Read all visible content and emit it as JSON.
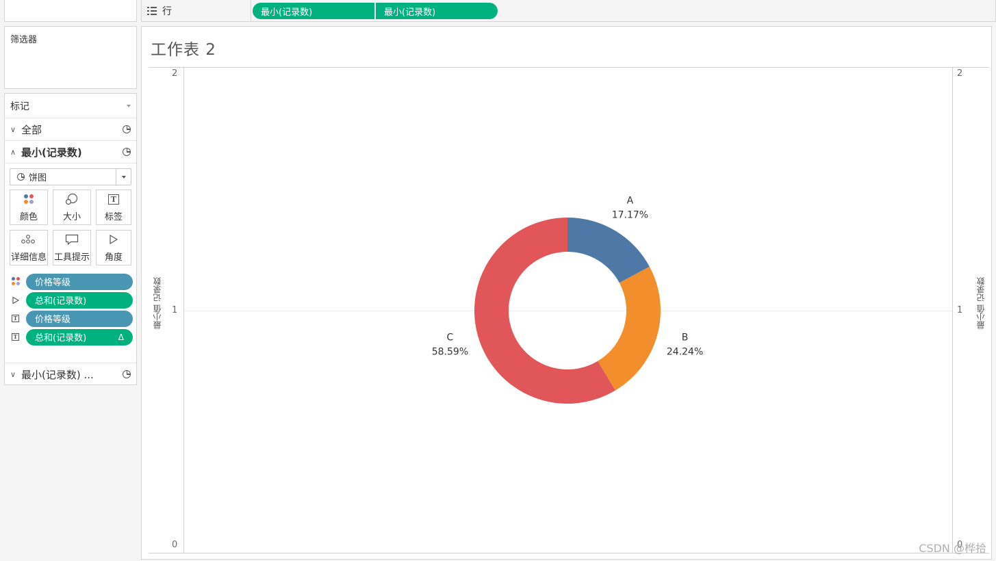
{
  "shelf": {
    "rows_label": "行",
    "pills": [
      "最小(记录数)",
      "最小(记录数)"
    ]
  },
  "filters": {
    "title": "筛选器"
  },
  "marks": {
    "title": "标记",
    "sections": {
      "all": "全部",
      "current": "最小(记录数)",
      "last": "最小(记录数) ..."
    },
    "mark_type": "饼图",
    "buttons": [
      "颜色",
      "大小",
      "标签",
      "详细信息",
      "工具提示",
      "角度"
    ],
    "fields": [
      {
        "icon": "color-dots-icon",
        "label": "价格等级",
        "color": "blue"
      },
      {
        "icon": "angle-icon",
        "label": "总和(记录数)",
        "color": "green"
      },
      {
        "icon": "text-label-icon",
        "label": "价格等级",
        "color": "blue"
      },
      {
        "icon": "text-label-icon",
        "label": "总和(记录数)",
        "color": "green",
        "delta": "Δ"
      }
    ]
  },
  "sheet": {
    "title": "工作表 2",
    "y_axis_title_left": "最小值 记录数",
    "y_axis_title_right": "最小值 记录数",
    "ticks": [
      "2",
      "1",
      "0"
    ]
  },
  "chart_data": {
    "type": "pie",
    "variant": "donut",
    "categories": [
      "A",
      "B",
      "C"
    ],
    "values": [
      17.17,
      24.24,
      58.59
    ],
    "labels": [
      "17.17%",
      "24.24%",
      "58.59%"
    ],
    "colors": [
      "#4e79a7",
      "#f28e2b",
      "#e15759"
    ],
    "ylim": [
      0,
      2
    ],
    "y_position": 1,
    "grid": true
  },
  "watermark": "CSDN @桦拾"
}
